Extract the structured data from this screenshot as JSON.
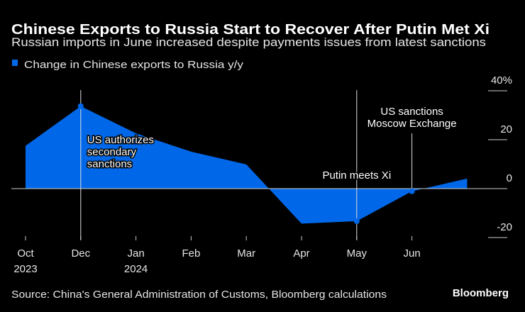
{
  "title": "Chinese Exports to Russia Start to Recover After Putin Met Xi",
  "subtitle": "Russian imports in June increased despite payments issues from latest sanctions",
  "source": "Source: China's General Administration of Customs, Bloomberg calculations",
  "brand": "Bloomberg",
  "chart_data": {
    "type": "area",
    "title": "Chinese Exports to Russia Start to Recover After Putin Met Xi",
    "subtitle": "Russian imports in June increased despite payments issues from latest sanctions",
    "legend": {
      "placement": "top-left",
      "entries": [
        "Change in Chinese exports to Russia y/y"
      ]
    },
    "colors": {
      "series": "#0068e8",
      "background": "#000000",
      "text": "#ffffff"
    },
    "x": [
      "Oct 2023",
      "Dec 2023",
      "Jan 2024",
      "Feb 2024",
      "Mar 2024",
      "Apr 2024",
      "May 2024",
      "Jun 2024",
      "Jul 2024"
    ],
    "series": [
      {
        "name": "Change in Chinese exports to Russia y/y",
        "values": [
          17.5,
          33.7,
          22.6,
          15.1,
          9.9,
          -14.3,
          -13.3,
          -1.1,
          4.1
        ]
      }
    ],
    "x_ticks": [
      {
        "month": "Oct",
        "year": "2023"
      },
      {
        "month": "Dec",
        "year": ""
      },
      {
        "month": "Jan",
        "year": "2024"
      },
      {
        "month": "Feb",
        "year": ""
      },
      {
        "month": "Mar",
        "year": ""
      },
      {
        "month": "Apr",
        "year": ""
      },
      {
        "month": "May",
        "year": ""
      },
      {
        "month": "Jun",
        "year": ""
      }
    ],
    "y_ticks": [
      {
        "value": 40,
        "label": "40%"
      },
      {
        "value": 20,
        "label": "20"
      },
      {
        "value": 0,
        "label": "0"
      },
      {
        "value": -20,
        "label": "-20"
      }
    ],
    "ylim": [
      -20,
      40
    ],
    "y_axis_side": "right",
    "grid": false,
    "annotations": [
      {
        "x": "Dec 2023",
        "lines": [
          "US authorizes",
          "secondary",
          "sanctions"
        ]
      },
      {
        "x": "May 2024",
        "lines": [
          "Putin meets Xi"
        ]
      },
      {
        "x": "Jun 2024",
        "lines": [
          "US sanctions",
          "Moscow Exchange"
        ]
      }
    ]
  }
}
